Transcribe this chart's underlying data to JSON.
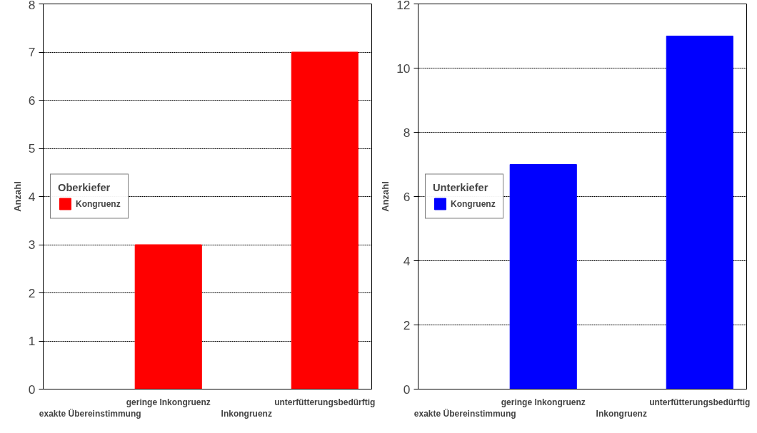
{
  "chart_data": [
    {
      "type": "bar",
      "ylabel": "Anzahl",
      "categories": [
        "exakte Übereinstimmung",
        "geringe Inkongruenz",
        "Inkongruenz",
        "unterfütterungsbedürftig"
      ],
      "legend_title": "Oberkiefer",
      "series": [
        {
          "name": "Kongruenz",
          "color": "#ff0000",
          "values": [
            0,
            3,
            0,
            7
          ]
        }
      ],
      "ylim": [
        0,
        8
      ],
      "yticks": [
        0,
        1,
        2,
        3,
        4,
        5,
        6,
        7,
        8
      ],
      "grid": "y",
      "legend": "left"
    },
    {
      "type": "bar",
      "ylabel": "Anzahl",
      "categories": [
        "exakte Übereinstimmung",
        "geringe Inkongruenz",
        "Inkongruenz",
        "unterfütterungsbedürftig"
      ],
      "legend_title": "Unterkiefer",
      "series": [
        {
          "name": "Kongruenz",
          "color": "#0000ff",
          "values": [
            0,
            7,
            0,
            11
          ]
        }
      ],
      "ylim": [
        0,
        12
      ],
      "yticks": [
        0,
        2,
        4,
        6,
        8,
        10,
        12
      ],
      "grid": "y",
      "legend": "left"
    }
  ]
}
